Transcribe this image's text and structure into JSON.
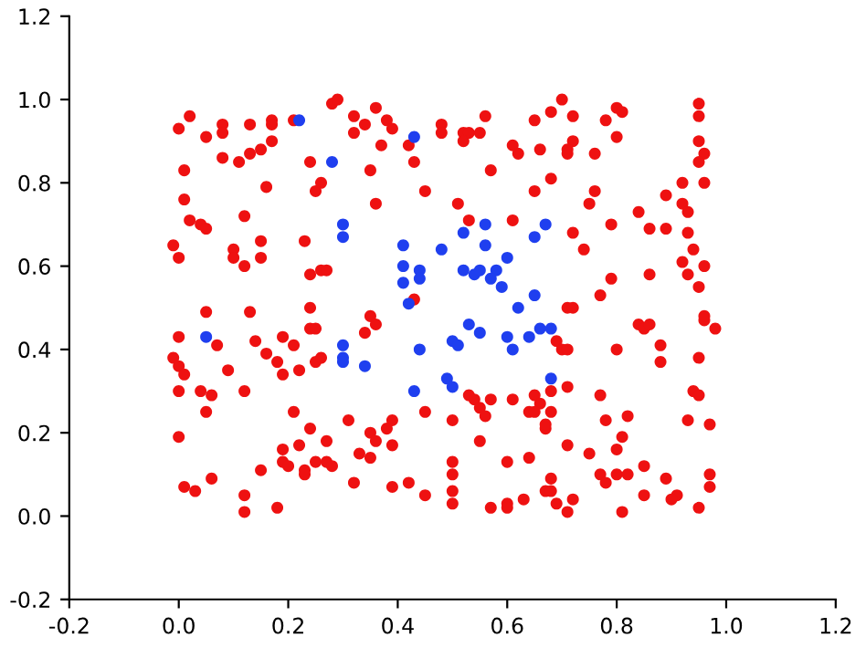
{
  "chart_data": {
    "type": "scatter",
    "marker": "circle",
    "grid": false,
    "legend": false,
    "xlim": [
      -0.2,
      1.2
    ],
    "xticks": [
      -0.2,
      {
        "value": 0,
        "label": "0.0"
      },
      0.2,
      0.4,
      0.6,
      0.8,
      {
        "value": 1,
        "label": "1.0"
      },
      1.2
    ],
    "ylim": [
      -0.2,
      1.2
    ],
    "yticks": [
      -0.2,
      {
        "value": 0,
        "label": "0.0"
      },
      0.2,
      0.4,
      0.6,
      0.8,
      {
        "value": 1,
        "label": "1.0"
      },
      1.2
    ],
    "series": [
      {
        "color": "#ee1111",
        "x": [
          0.02,
          0.0,
          0.05,
          0.08,
          0.08,
          0.13,
          0.17,
          0.17,
          0.21,
          0.28,
          0.29,
          0.32,
          0.32,
          0.17,
          0.15,
          0.13,
          0.08,
          0.11,
          0.24,
          0.01,
          0.26,
          0.25,
          0.16,
          0.01,
          0.02,
          0.04,
          0.05,
          0.12,
          0.23,
          0.15,
          -0.01,
          0.1,
          0.0,
          0.1,
          0.15,
          0.12,
          0.26,
          0.27,
          0.24,
          0.24,
          0.36,
          0.38,
          0.34,
          0.39,
          0.48,
          0.48,
          0.52,
          0.53,
          0.55,
          0.56,
          0.65,
          0.68,
          0.42,
          0.37,
          0.52,
          0.61,
          0.62,
          0.66,
          0.43,
          0.35,
          0.57,
          0.68,
          0.65,
          0.45,
          0.36,
          0.51,
          0.53,
          0.61,
          0.43,
          0.7,
          0.72,
          0.78,
          0.8,
          0.81,
          0.95,
          0.95,
          0.8,
          0.95,
          0.72,
          0.71,
          0.71,
          0.76,
          0.96,
          0.95,
          0.96,
          0.92,
          0.76,
          0.89,
          0.75,
          0.92,
          0.93,
          0.84,
          0.79,
          0.86,
          0.89,
          0.93,
          0.72,
          0.74,
          0.94,
          0.92,
          0.96,
          0.86,
          0.93,
          0.79,
          0.95,
          0.77,
          0.71,
          0.72,
          0.05,
          0.13,
          0.0,
          0.07,
          0.14,
          0.19,
          0.21,
          0.16,
          0.24,
          0.25,
          0.25,
          0.26,
          -0.01,
          0.0,
          0.01,
          0.09,
          0.18,
          0.19,
          0.22,
          0.0,
          0.04,
          0.06,
          0.12,
          0.05,
          0.21,
          0.0,
          0.24,
          0.31,
          0.19,
          0.22,
          0.27,
          0.19,
          0.2,
          0.25,
          0.27,
          0.28,
          0.15,
          0.23,
          0.23,
          0.06,
          0.01,
          0.03,
          0.32,
          0.12,
          0.12,
          0.18,
          0.35,
          0.36,
          0.34,
          0.53,
          0.54,
          0.55,
          0.57,
          0.56,
          0.61,
          0.65,
          0.66,
          0.64,
          0.65,
          0.67,
          0.45,
          0.5,
          0.39,
          0.38,
          0.35,
          0.36,
          0.39,
          0.55,
          0.33,
          0.35,
          0.5,
          0.6,
          0.64,
          0.5,
          0.39,
          0.42,
          0.45,
          0.5,
          0.5,
          0.57,
          0.6,
          0.6,
          0.63,
          0.67,
          0.84,
          0.85,
          0.86,
          0.96,
          0.96,
          0.98,
          0.69,
          0.7,
          0.71,
          0.8,
          0.88,
          0.88,
          0.95,
          0.68,
          0.71,
          0.68,
          0.67,
          0.77,
          0.82,
          0.78,
          0.81,
          0.8,
          0.71,
          0.75,
          0.94,
          0.95,
          0.93,
          0.97,
          0.77,
          0.78,
          0.8,
          0.82,
          0.85,
          0.89,
          0.68,
          0.68,
          0.69,
          0.71,
          0.72,
          0.81,
          0.85,
          0.91,
          0.9,
          0.95,
          0.97,
          0.97
        ],
        "values": [
          0.96,
          0.93,
          0.91,
          0.94,
          0.92,
          0.94,
          0.95,
          0.94,
          0.95,
          0.99,
          1.0,
          0.96,
          0.92,
          0.9,
          0.88,
          0.87,
          0.86,
          0.85,
          0.85,
          0.83,
          0.8,
          0.78,
          0.79,
          0.76,
          0.71,
          0.7,
          0.69,
          0.72,
          0.66,
          0.66,
          0.65,
          0.64,
          0.62,
          0.62,
          0.62,
          0.6,
          0.59,
          0.59,
          0.58,
          0.5,
          0.98,
          0.95,
          0.94,
          0.93,
          0.94,
          0.92,
          0.92,
          0.92,
          0.92,
          0.96,
          0.95,
          0.97,
          0.89,
          0.89,
          0.9,
          0.89,
          0.87,
          0.88,
          0.85,
          0.83,
          0.83,
          0.81,
          0.78,
          0.78,
          0.75,
          0.75,
          0.71,
          0.71,
          0.52,
          1.0,
          0.96,
          0.95,
          0.98,
          0.97,
          0.99,
          0.96,
          0.91,
          0.9,
          0.9,
          0.88,
          0.87,
          0.87,
          0.87,
          0.85,
          0.8,
          0.8,
          0.78,
          0.77,
          0.75,
          0.75,
          0.73,
          0.73,
          0.7,
          0.69,
          0.69,
          0.68,
          0.68,
          0.64,
          0.64,
          0.61,
          0.6,
          0.58,
          0.58,
          0.57,
          0.55,
          0.53,
          0.5,
          0.5,
          0.49,
          0.49,
          0.43,
          0.41,
          0.42,
          0.43,
          0.41,
          0.39,
          0.45,
          0.45,
          0.37,
          0.38,
          0.38,
          0.36,
          0.34,
          0.35,
          0.37,
          0.34,
          0.35,
          0.3,
          0.3,
          0.29,
          0.3,
          0.25,
          0.25,
          0.19,
          0.21,
          0.23,
          0.16,
          0.17,
          0.18,
          0.13,
          0.12,
          0.13,
          0.13,
          0.12,
          0.11,
          0.11,
          0.1,
          0.09,
          0.07,
          0.06,
          0.08,
          0.05,
          0.01,
          0.02,
          0.48,
          0.46,
          0.44,
          0.29,
          0.28,
          0.26,
          0.28,
          0.24,
          0.28,
          0.29,
          0.27,
          0.25,
          0.25,
          0.21,
          0.25,
          0.23,
          0.23,
          0.21,
          0.2,
          0.18,
          0.17,
          0.18,
          0.15,
          0.14,
          0.13,
          0.13,
          0.14,
          0.1,
          0.07,
          0.08,
          0.05,
          0.06,
          0.03,
          0.02,
          0.03,
          0.02,
          0.04,
          0.06,
          0.46,
          0.45,
          0.46,
          0.47,
          0.48,
          0.45,
          0.42,
          0.4,
          0.4,
          0.4,
          0.41,
          0.37,
          0.38,
          0.3,
          0.31,
          0.25,
          0.22,
          0.29,
          0.24,
          0.23,
          0.19,
          0.16,
          0.17,
          0.15,
          0.3,
          0.29,
          0.23,
          0.22,
          0.1,
          0.08,
          0.1,
          0.1,
          0.12,
          0.09,
          0.09,
          0.06,
          0.03,
          0.01,
          0.04,
          0.01,
          0.05,
          0.05,
          0.04,
          0.02,
          0.1,
          0.07
        ]
      },
      {
        "color": "#1f3fef",
        "x": [
          0.22,
          0.28,
          0.3,
          0.3,
          0.43,
          0.67,
          0.65,
          0.56,
          0.52,
          0.56,
          0.48,
          0.41,
          0.6,
          0.41,
          0.44,
          0.52,
          0.54,
          0.55,
          0.58,
          0.57,
          0.44,
          0.41,
          0.59,
          0.65,
          0.62,
          0.42,
          0.05,
          0.3,
          0.3,
          0.3,
          0.53,
          0.55,
          0.5,
          0.51,
          0.6,
          0.64,
          0.66,
          0.68,
          0.61,
          0.44,
          0.34,
          0.49,
          0.5,
          0.43,
          0.68
        ],
        "values": [
          0.95,
          0.85,
          0.7,
          0.67,
          0.91,
          0.7,
          0.67,
          0.7,
          0.68,
          0.65,
          0.64,
          0.65,
          0.62,
          0.6,
          0.59,
          0.59,
          0.58,
          0.59,
          0.59,
          0.57,
          0.57,
          0.56,
          0.55,
          0.53,
          0.5,
          0.51,
          0.43,
          0.41,
          0.38,
          0.37,
          0.46,
          0.44,
          0.42,
          0.41,
          0.43,
          0.43,
          0.45,
          0.45,
          0.4,
          0.4,
          0.36,
          0.33,
          0.31,
          0.3,
          0.33
        ]
      }
    ]
  }
}
